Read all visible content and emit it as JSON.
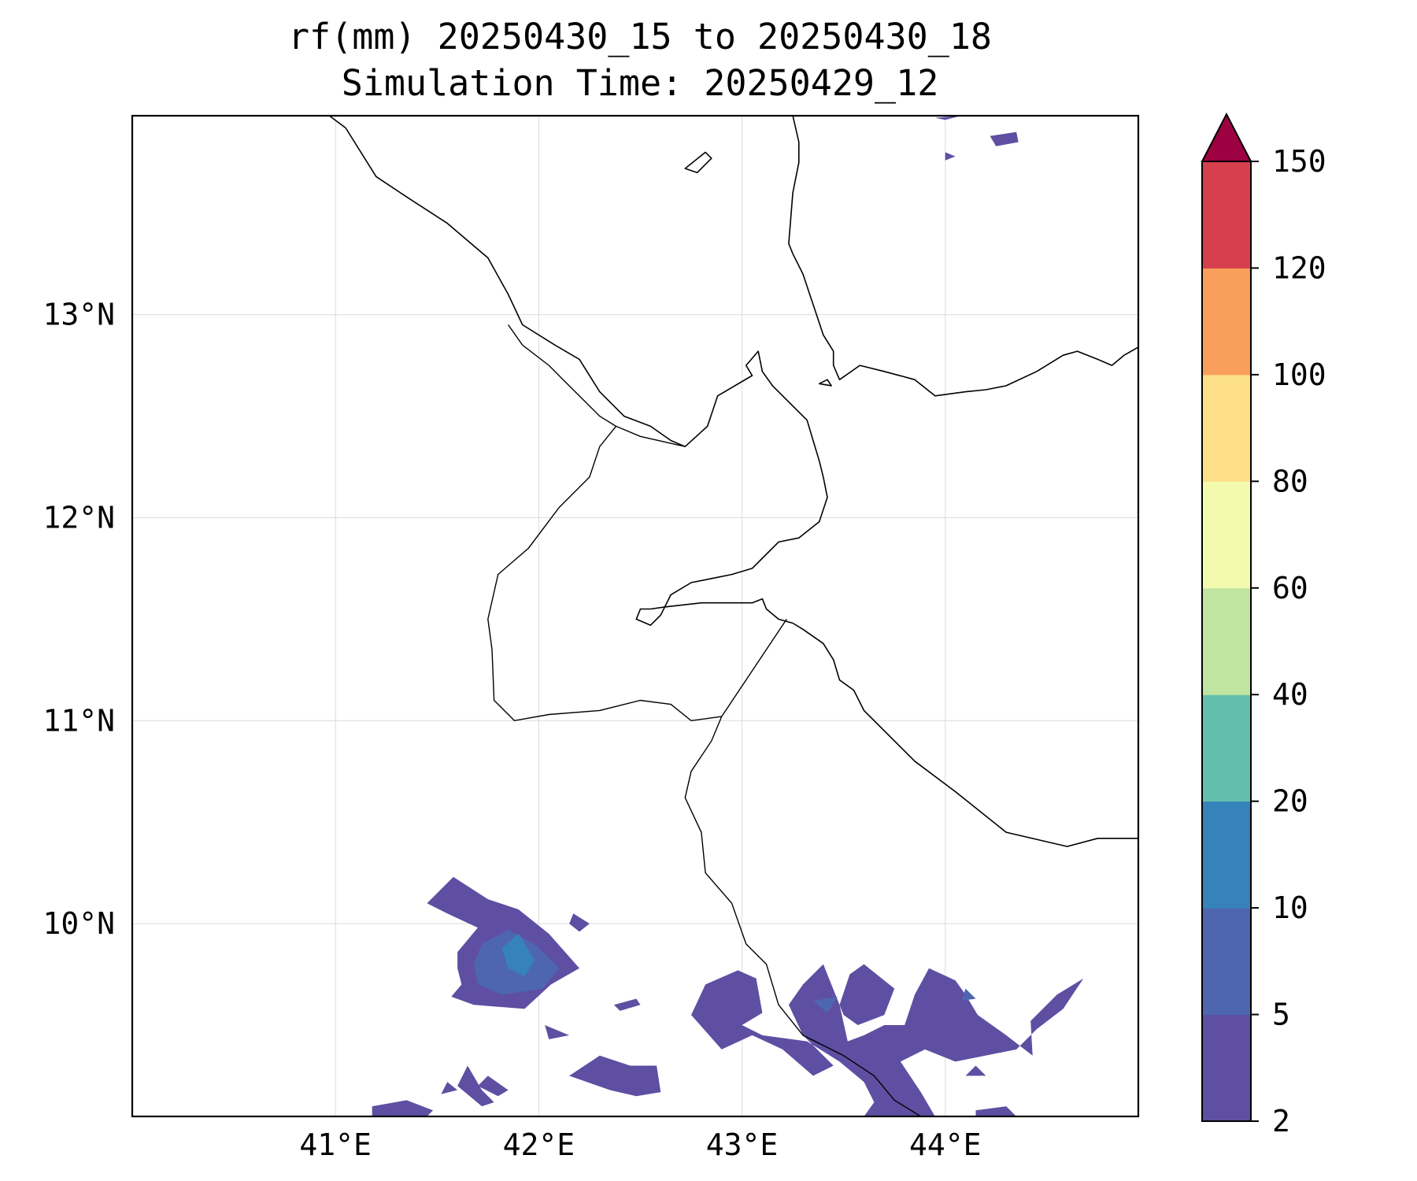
{
  "title": {
    "line1": "rf(mm) 20250430_15 to 20250430_18",
    "line2": "Simulation Time: 20250429_12"
  },
  "map": {
    "lon_range": [
      40.0,
      44.95
    ],
    "lat_range": [
      9.05,
      13.98
    ],
    "lon_ticks": [
      {
        "value": 41,
        "label": "41°E"
      },
      {
        "value": 42,
        "label": "42°E"
      },
      {
        "value": 43,
        "label": "43°E"
      },
      {
        "value": 44,
        "label": "44°E"
      }
    ],
    "lat_ticks": [
      {
        "value": 13,
        "label": "13°N"
      },
      {
        "value": 12,
        "label": "12°N"
      },
      {
        "value": 11,
        "label": "11°N"
      },
      {
        "value": 10,
        "label": "10°N"
      }
    ],
    "grid": true
  },
  "colorbar": {
    "extend": "max",
    "extend_color": "#9e0142",
    "levels": [
      {
        "label": "2",
        "color": "#5e4fa2"
      },
      {
        "label": "5",
        "color": "#4e66b0"
      },
      {
        "label": "10",
        "color": "#3683bb"
      },
      {
        "label": "20",
        "color": "#63bfab"
      },
      {
        "label": "40",
        "color": "#bfe5a0"
      },
      {
        "label": "60",
        "color": "#f3faad"
      },
      {
        "label": "80",
        "color": "#fee08b"
      },
      {
        "label": "100",
        "color": "#f99f5b"
      },
      {
        "label": "120",
        "color": "#d6404e"
      },
      {
        "label": "150",
        "color": null
      }
    ]
  },
  "rain_areas": [
    {
      "level": "2-5",
      "color": "#5e4fa2",
      "coords": [
        [
          41.45,
          10.1
        ],
        [
          41.58,
          10.23
        ],
        [
          41.75,
          10.12
        ],
        [
          41.9,
          10.07
        ],
        [
          42.05,
          9.95
        ],
        [
          42.2,
          9.78
        ],
        [
          42.06,
          9.7
        ],
        [
          41.93,
          9.58
        ],
        [
          41.68,
          9.6
        ],
        [
          41.57,
          9.64
        ],
        [
          41.62,
          9.7
        ],
        [
          41.6,
          9.78
        ],
        [
          41.6,
          9.86
        ],
        [
          41.7,
          9.98
        ],
        [
          41.55,
          10.05
        ]
      ]
    },
    {
      "level": "5-10",
      "color": "#4e66b0",
      "coords": [
        [
          41.72,
          9.9
        ],
        [
          41.85,
          9.97
        ],
        [
          41.98,
          9.9
        ],
        [
          42.1,
          9.78
        ],
        [
          42.02,
          9.68
        ],
        [
          41.82,
          9.65
        ],
        [
          41.7,
          9.7
        ],
        [
          41.68,
          9.8
        ]
      ]
    },
    {
      "level": "10-20",
      "color": "#3683bb",
      "coords": [
        [
          41.82,
          9.88
        ],
        [
          41.9,
          9.95
        ],
        [
          41.98,
          9.82
        ],
        [
          41.93,
          9.74
        ],
        [
          41.85,
          9.78
        ]
      ]
    },
    {
      "level": "2-5",
      "color": "#5e4fa2",
      "coords": [
        [
          42.17,
          10.05
        ],
        [
          42.25,
          10.0
        ],
        [
          42.2,
          9.96
        ],
        [
          42.15,
          10.0
        ]
      ]
    },
    {
      "level": "2-5",
      "color": "#5e4fa2",
      "coords": [
        [
          42.37,
          9.6
        ],
        [
          42.48,
          9.63
        ],
        [
          42.5,
          9.6
        ],
        [
          42.4,
          9.57
        ]
      ]
    },
    {
      "level": "2-5",
      "color": "#5e4fa2",
      "coords": [
        [
          42.03,
          9.5
        ],
        [
          42.15,
          9.45
        ],
        [
          42.05,
          9.43
        ]
      ]
    },
    {
      "level": "2-5",
      "color": "#5e4fa2",
      "coords": [
        [
          42.82,
          9.7
        ],
        [
          42.98,
          9.77
        ],
        [
          43.07,
          9.73
        ],
        [
          43.1,
          9.56
        ],
        [
          43.0,
          9.5
        ],
        [
          43.1,
          9.45
        ],
        [
          43.32,
          9.42
        ],
        [
          43.48,
          9.32
        ],
        [
          43.6,
          9.22
        ],
        [
          43.65,
          9.12
        ],
        [
          43.6,
          9.05
        ],
        [
          43.95,
          9.05
        ],
        [
          43.88,
          9.17
        ],
        [
          43.78,
          9.32
        ],
        [
          43.9,
          9.38
        ],
        [
          44.05,
          9.32
        ],
        [
          44.35,
          9.38
        ],
        [
          44.45,
          9.48
        ],
        [
          44.58,
          9.58
        ],
        [
          44.68,
          9.73
        ],
        [
          44.55,
          9.65
        ],
        [
          44.42,
          9.52
        ],
        [
          44.43,
          9.35
        ],
        [
          44.3,
          9.45
        ],
        [
          44.16,
          9.55
        ],
        [
          44.1,
          9.65
        ],
        [
          44.05,
          9.72
        ],
        [
          43.92,
          9.78
        ],
        [
          43.85,
          9.65
        ],
        [
          43.8,
          9.5
        ],
        [
          43.7,
          9.5
        ],
        [
          43.6,
          9.45
        ],
        [
          43.52,
          9.42
        ],
        [
          43.48,
          9.6
        ],
        [
          43.53,
          9.75
        ],
        [
          43.6,
          9.8
        ],
        [
          43.75,
          9.68
        ],
        [
          43.7,
          9.55
        ],
        [
          43.57,
          9.5
        ],
        [
          43.5,
          9.55
        ],
        [
          43.4,
          9.8
        ],
        [
          43.3,
          9.7
        ],
        [
          43.23,
          9.6
        ],
        [
          43.3,
          9.45
        ],
        [
          43.45,
          9.3
        ],
        [
          43.35,
          9.25
        ],
        [
          43.2,
          9.38
        ],
        [
          43.05,
          9.45
        ],
        [
          42.9,
          9.38
        ],
        [
          42.75,
          9.55
        ]
      ]
    },
    {
      "level": "5-10",
      "color": "#4e66b0",
      "coords": [
        [
          43.35,
          9.62
        ],
        [
          43.47,
          9.64
        ],
        [
          43.42,
          9.56
        ]
      ]
    },
    {
      "level": "5-10",
      "color": "#4e66b0",
      "coords": [
        [
          44.1,
          9.68
        ],
        [
          44.15,
          9.63
        ],
        [
          44.08,
          9.62
        ]
      ]
    },
    {
      "level": "2-5",
      "color": "#5e4fa2",
      "coords": [
        [
          42.15,
          9.25
        ],
        [
          42.3,
          9.35
        ],
        [
          42.45,
          9.3
        ],
        [
          42.58,
          9.3
        ],
        [
          42.6,
          9.17
        ],
        [
          42.48,
          9.15
        ],
        [
          42.35,
          9.18
        ]
      ]
    },
    {
      "level": "2-5",
      "color": "#5e4fa2",
      "coords": [
        [
          41.75,
          9.25
        ],
        [
          41.85,
          9.18
        ],
        [
          41.8,
          9.15
        ],
        [
          41.7,
          9.2
        ]
      ]
    },
    {
      "level": "2-5",
      "color": "#5e4fa2",
      "coords": [
        [
          41.65,
          9.3
        ],
        [
          41.72,
          9.18
        ],
        [
          41.78,
          9.12
        ],
        [
          41.72,
          9.1
        ],
        [
          41.6,
          9.2
        ]
      ]
    },
    {
      "level": "2-5",
      "color": "#5e4fa2",
      "coords": [
        [
          41.55,
          9.22
        ],
        [
          41.6,
          9.18
        ],
        [
          41.52,
          9.16
        ]
      ]
    },
    {
      "level": "2-5",
      "color": "#5e4fa2",
      "coords": [
        [
          41.18,
          9.1
        ],
        [
          41.35,
          9.13
        ],
        [
          41.48,
          9.08
        ],
        [
          41.45,
          9.05
        ],
        [
          41.18,
          9.05
        ]
      ]
    },
    {
      "level": "2-5",
      "color": "#5e4fa2",
      "coords": [
        [
          44.15,
          9.3
        ],
        [
          44.2,
          9.25
        ],
        [
          44.1,
          9.25
        ]
      ]
    },
    {
      "level": "2-5",
      "color": "#5e4fa2",
      "coords": [
        [
          44.15,
          9.08
        ],
        [
          44.3,
          9.1
        ],
        [
          44.35,
          9.05
        ],
        [
          44.15,
          9.05
        ]
      ]
    },
    {
      "level": "2-5",
      "color": "#5e4fa2",
      "coords": [
        [
          44.22,
          13.88
        ],
        [
          44.35,
          13.9
        ],
        [
          44.36,
          13.85
        ],
        [
          44.25,
          13.83
        ]
      ]
    },
    {
      "level": "2-5",
      "color": "#5e4fa2",
      "coords": [
        [
          44.0,
          13.8
        ],
        [
          44.05,
          13.78
        ],
        [
          44.0,
          13.76
        ]
      ]
    },
    {
      "level": "2-5",
      "color": "#5e4fa2",
      "coords": [
        [
          43.95,
          13.97
        ],
        [
          44.08,
          13.98
        ],
        [
          44.0,
          13.96
        ]
      ]
    }
  ],
  "coastlines": [
    {
      "name": "african-coast",
      "coords": [
        [
          40.97,
          13.98
        ],
        [
          41.05,
          13.92
        ],
        [
          41.2,
          13.68
        ],
        [
          41.35,
          13.58
        ],
        [
          41.55,
          13.45
        ],
        [
          41.75,
          13.28
        ],
        [
          41.85,
          13.1
        ],
        [
          41.92,
          12.95
        ],
        [
          42.08,
          12.85
        ],
        [
          42.2,
          12.78
        ],
        [
          42.3,
          12.62
        ],
        [
          42.42,
          12.5
        ],
        [
          42.55,
          12.45
        ],
        [
          42.65,
          12.38
        ],
        [
          42.72,
          12.35
        ],
        [
          42.83,
          12.45
        ],
        [
          42.88,
          12.6
        ],
        [
          43.05,
          12.7
        ],
        [
          43.02,
          12.75
        ],
        [
          43.08,
          12.82
        ],
        [
          43.1,
          12.72
        ],
        [
          43.15,
          12.65
        ],
        [
          43.25,
          12.55
        ],
        [
          43.32,
          12.48
        ],
        [
          43.35,
          12.38
        ],
        [
          43.38,
          12.28
        ],
        [
          43.4,
          12.2
        ],
        [
          43.42,
          12.1
        ],
        [
          43.38,
          11.98
        ],
        [
          43.28,
          11.9
        ],
        [
          43.18,
          11.88
        ],
        [
          43.1,
          11.8
        ],
        [
          43.05,
          11.75
        ],
        [
          42.95,
          11.72
        ],
        [
          42.85,
          11.7
        ],
        [
          42.75,
          11.68
        ],
        [
          42.65,
          11.62
        ],
        [
          42.6,
          11.52
        ],
        [
          42.55,
          11.47
        ],
        [
          42.48,
          11.5
        ],
        [
          42.5,
          11.55
        ],
        [
          42.55,
          11.55
        ],
        [
          42.62,
          11.56
        ],
        [
          42.8,
          11.58
        ],
        [
          42.95,
          11.58
        ],
        [
          43.05,
          11.58
        ],
        [
          43.1,
          11.6
        ],
        [
          43.12,
          11.55
        ],
        [
          43.18,
          11.5
        ],
        [
          43.25,
          11.48
        ],
        [
          43.3,
          11.45
        ],
        [
          43.4,
          11.38
        ],
        [
          43.45,
          11.3
        ],
        [
          43.48,
          11.2
        ],
        [
          43.55,
          11.15
        ],
        [
          43.6,
          11.05
        ],
        [
          43.7,
          10.95
        ],
        [
          43.85,
          10.8
        ],
        [
          44.05,
          10.65
        ],
        [
          44.3,
          10.45
        ],
        [
          44.6,
          10.38
        ],
        [
          44.75,
          10.42
        ],
        [
          44.95,
          10.42
        ]
      ]
    },
    {
      "name": "arabian-coast",
      "coords": [
        [
          43.25,
          13.98
        ],
        [
          43.28,
          13.85
        ],
        [
          43.28,
          13.75
        ],
        [
          43.25,
          13.6
        ],
        [
          43.23,
          13.35
        ],
        [
          43.25,
          13.3
        ],
        [
          43.3,
          13.2
        ],
        [
          43.35,
          13.05
        ],
        [
          43.4,
          12.9
        ],
        [
          43.45,
          12.82
        ],
        [
          43.45,
          12.75
        ],
        [
          43.48,
          12.68
        ],
        [
          43.58,
          12.75
        ],
        [
          43.7,
          12.72
        ],
        [
          43.85,
          12.68
        ],
        [
          43.95,
          12.6
        ],
        [
          44.1,
          12.62
        ],
        [
          44.2,
          12.63
        ],
        [
          44.3,
          12.65
        ],
        [
          44.45,
          12.72
        ],
        [
          44.58,
          12.8
        ],
        [
          44.65,
          12.82
        ],
        [
          44.75,
          12.78
        ],
        [
          44.82,
          12.75
        ],
        [
          44.88,
          12.8
        ],
        [
          44.95,
          12.84
        ]
      ]
    }
  ],
  "islands": [
    {
      "name": "dahlak-like-island",
      "coords": [
        [
          42.72,
          13.72
        ],
        [
          42.82,
          13.8
        ],
        [
          42.85,
          13.77
        ],
        [
          42.78,
          13.7
        ]
      ]
    },
    {
      "name": "perim-like-island",
      "coords": [
        [
          43.38,
          12.66
        ],
        [
          43.42,
          12.68
        ],
        [
          43.44,
          12.65
        ]
      ]
    }
  ],
  "borders": [
    {
      "name": "border-eritrea-ethiopia",
      "coords": [
        [
          41.85,
          12.95
        ],
        [
          41.92,
          12.85
        ],
        [
          42.05,
          12.75
        ],
        [
          42.12,
          12.68
        ],
        [
          42.3,
          12.5
        ],
        [
          42.38,
          12.45
        ]
      ]
    },
    {
      "name": "border-djibouti-north",
      "coords": [
        [
          42.38,
          12.45
        ],
        [
          42.5,
          12.4
        ],
        [
          42.72,
          12.35
        ]
      ]
    },
    {
      "name": "border-djibouti-ethiopia",
      "coords": [
        [
          42.38,
          12.45
        ],
        [
          42.3,
          12.35
        ],
        [
          42.25,
          12.2
        ],
        [
          42.1,
          12.05
        ],
        [
          41.95,
          11.85
        ],
        [
          41.8,
          11.72
        ],
        [
          41.75,
          11.5
        ],
        [
          41.77,
          11.35
        ],
        [
          41.78,
          11.1
        ],
        [
          41.88,
          11.0
        ],
        [
          42.05,
          11.03
        ],
        [
          42.3,
          11.05
        ],
        [
          42.5,
          11.1
        ],
        [
          42.65,
          11.08
        ],
        [
          42.75,
          11.0
        ],
        [
          42.9,
          11.02
        ]
      ]
    },
    {
      "name": "border-djibouti-somaliland",
      "coords": [
        [
          42.9,
          11.02
        ],
        [
          43.22,
          11.5
        ]
      ]
    },
    {
      "name": "border-ethiopia-somaliland",
      "coords": [
        [
          42.9,
          11.02
        ],
        [
          42.85,
          10.9
        ],
        [
          42.75,
          10.75
        ],
        [
          42.72,
          10.62
        ],
        [
          42.8,
          10.45
        ],
        [
          42.82,
          10.25
        ],
        [
          42.95,
          10.1
        ],
        [
          43.02,
          9.9
        ],
        [
          43.12,
          9.8
        ],
        [
          43.18,
          9.6
        ],
        [
          43.3,
          9.45
        ],
        [
          43.5,
          9.35
        ],
        [
          43.65,
          9.25
        ],
        [
          43.75,
          9.13
        ],
        [
          43.88,
          9.05
        ]
      ]
    }
  ]
}
